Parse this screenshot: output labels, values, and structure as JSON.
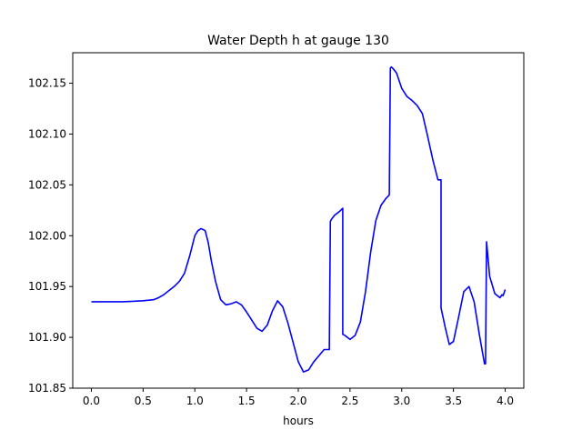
{
  "chart_data": {
    "type": "line",
    "title": "Water Depth h at gauge 130",
    "xlabel": "hours",
    "ylabel": "",
    "xlim": [
      -0.18,
      4.18
    ],
    "ylim": [
      101.85,
      102.18
    ],
    "xticks": [
      0.0,
      0.5,
      1.0,
      1.5,
      2.0,
      2.5,
      3.0,
      3.5,
      4.0
    ],
    "xtick_labels": [
      "0.0",
      "0.5",
      "1.0",
      "1.5",
      "2.0",
      "2.5",
      "3.0",
      "3.5",
      "4.0"
    ],
    "yticks": [
      101.85,
      101.9,
      101.95,
      102.0,
      102.05,
      102.1,
      102.15
    ],
    "ytick_labels": [
      "101.85",
      "101.90",
      "101.95",
      "102.00",
      "102.05",
      "102.10",
      "102.15"
    ],
    "grid": false,
    "legend": "none",
    "series": [
      {
        "color": "#0000ff",
        "x": [
          0.0,
          0.1,
          0.2,
          0.3,
          0.4,
          0.5,
          0.6,
          0.65,
          0.7,
          0.75,
          0.8,
          0.85,
          0.9,
          0.95,
          1.0,
          1.03,
          1.06,
          1.1,
          1.13,
          1.16,
          1.2,
          1.25,
          1.3,
          1.35,
          1.4,
          1.45,
          1.5,
          1.55,
          1.6,
          1.65,
          1.7,
          1.75,
          1.8,
          1.85,
          1.9,
          1.95,
          2.0,
          2.05,
          2.1,
          2.15,
          2.2,
          2.25,
          2.3,
          2.31,
          2.32,
          2.35,
          2.4,
          2.43,
          2.43,
          2.45,
          2.5,
          2.55,
          2.6,
          2.65,
          2.7,
          2.75,
          2.8,
          2.85,
          2.88,
          2.89,
          2.9,
          2.92,
          2.95,
          3.0,
          3.05,
          3.1,
          3.15,
          3.2,
          3.25,
          3.3,
          3.35,
          3.38,
          3.38,
          3.42,
          3.46,
          3.5,
          3.55,
          3.6,
          3.65,
          3.7,
          3.75,
          3.8,
          3.81,
          3.82,
          3.85,
          3.9,
          3.95,
          3.97,
          3.98,
          4.0
        ],
        "y": [
          101.935,
          101.935,
          101.935,
          101.935,
          101.9355,
          101.936,
          101.937,
          101.939,
          101.942,
          101.946,
          101.95,
          101.955,
          101.963,
          101.98,
          102.0,
          102.005,
          102.007,
          102.005,
          101.993,
          101.975,
          101.955,
          101.937,
          101.932,
          101.933,
          101.935,
          101.932,
          101.925,
          101.917,
          101.909,
          101.906,
          101.912,
          101.926,
          101.936,
          101.93,
          101.914,
          101.895,
          101.876,
          101.866,
          101.868,
          101.876,
          101.882,
          101.888,
          101.888,
          102.014,
          102.016,
          102.02,
          102.024,
          102.027,
          101.903,
          101.902,
          101.898,
          101.902,
          101.915,
          101.945,
          101.984,
          102.015,
          102.03,
          102.037,
          102.04,
          102.165,
          102.166,
          102.164,
          102.16,
          102.145,
          102.137,
          102.133,
          102.128,
          102.12,
          102.098,
          102.075,
          102.055,
          102.055,
          101.929,
          101.91,
          101.893,
          101.896,
          101.92,
          101.945,
          101.95,
          101.935,
          101.903,
          101.874,
          101.874,
          101.994,
          101.96,
          101.943,
          101.939,
          101.942,
          101.941,
          101.947
        ]
      }
    ]
  }
}
